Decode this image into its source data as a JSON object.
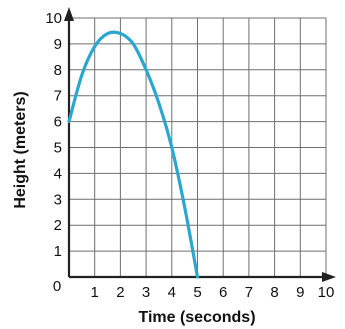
{
  "chart_data": {
    "type": "line",
    "title": "",
    "xlabel": "Time (seconds)",
    "ylabel": "Height (meters)",
    "xlim": [
      0,
      10
    ],
    "ylim": [
      0,
      10
    ],
    "x_ticks": [
      0,
      1,
      2,
      3,
      4,
      5,
      6,
      7,
      8,
      9,
      10
    ],
    "y_ticks": [
      0,
      1,
      2,
      3,
      4,
      5,
      6,
      7,
      8,
      9,
      10
    ],
    "origin_label": "0",
    "grid": true,
    "series": [
      {
        "color": "#2aa6cf",
        "x": [
          0,
          0.5,
          1,
          1.5,
          2,
          2.5,
          3,
          3.5,
          4,
          4.5,
          5
        ],
        "y": [
          6.0,
          7.8,
          8.9,
          9.4,
          9.4,
          9.0,
          8.0,
          6.7,
          5.0,
          2.7,
          0.0
        ]
      }
    ]
  }
}
